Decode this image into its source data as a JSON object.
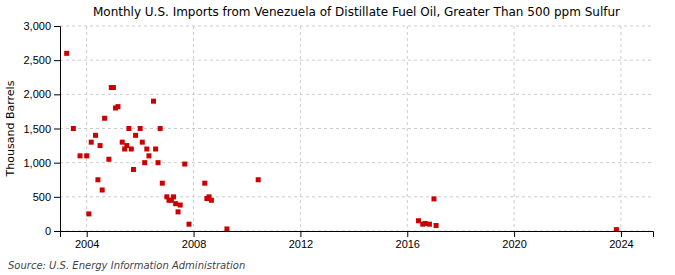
{
  "chart_data": {
    "type": "scatter",
    "title": "Monthly U.S. Imports from Venezuela of Distillate Fuel Oil, Greater Than 500 ppm Sulfur",
    "ylabel": "Thousand Barrels",
    "annotations": [
      "Source: U.S. Energy Information Administration"
    ],
    "color": "#cc0000",
    "marker": "square",
    "grid": true,
    "xlim": [
      2003.0,
      2025.2
    ],
    "ylim": [
      0,
      3000
    ],
    "xticks": [
      2004,
      2008,
      2012,
      2016,
      2020,
      2024
    ],
    "yticks": [
      0,
      500,
      {
        "value": 1000,
        "label": "1,000"
      },
      {
        "value": 1500,
        "label": "1,500"
      },
      {
        "value": 2000,
        "label": "2,000"
      },
      {
        "value": 2500,
        "label": "2,500"
      },
      {
        "value": 3000,
        "label": "3,000"
      }
    ],
    "x": [
      2003.25,
      2003.5,
      2003.75,
      2004.0,
      2004.08,
      2004.17,
      2004.33,
      2004.42,
      2004.5,
      2004.58,
      2004.67,
      2004.83,
      2004.92,
      2005.0,
      2005.08,
      2005.17,
      2005.33,
      2005.42,
      2005.5,
      2005.58,
      2005.67,
      2005.75,
      2005.83,
      2006.0,
      2006.08,
      2006.17,
      2006.25,
      2006.33,
      2006.5,
      2006.58,
      2006.67,
      2006.75,
      2006.83,
      2007.0,
      2007.08,
      2007.17,
      2007.25,
      2007.33,
      2007.42,
      2007.5,
      2007.67,
      2007.83,
      2008.42,
      2008.5,
      2008.58,
      2008.67,
      2009.25,
      2010.42,
      2016.42,
      2016.58,
      2016.67,
      2016.83,
      2017.0,
      2017.08,
      2023.83
    ],
    "values": [
      2600,
      1500,
      1100,
      1100,
      250,
      1300,
      1400,
      750,
      1250,
      600,
      1650,
      1050,
      2100,
      2100,
      1800,
      1820,
      1300,
      1200,
      1250,
      1500,
      1200,
      900,
      1400,
      1500,
      1300,
      1000,
      1200,
      1100,
      1900,
      1200,
      1000,
      1500,
      700,
      500,
      450,
      450,
      500,
      400,
      280,
      380,
      980,
      100,
      700,
      475,
      500,
      450,
      30,
      750,
      150,
      100,
      110,
      100,
      470,
      80,
      20
    ]
  }
}
